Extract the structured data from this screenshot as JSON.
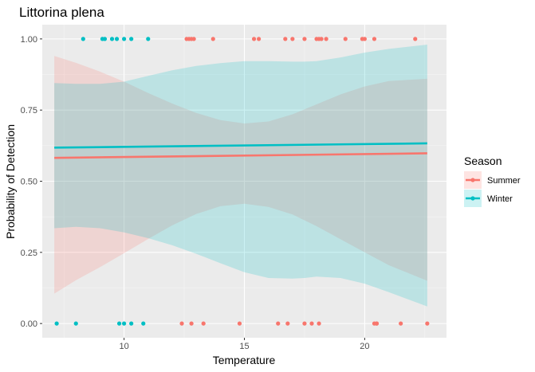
{
  "chart_data": {
    "type": "scatter",
    "title": "Littorina plena",
    "xlabel": "Temperature",
    "ylabel": "Probability of Detection",
    "xlim": [
      6.6,
      23.4
    ],
    "ylim": [
      -0.05,
      1.05
    ],
    "x_ticks": [
      10,
      15,
      20
    ],
    "x_tick_labels": [
      "10",
      "15",
      "20"
    ],
    "y_ticks": [
      0,
      0.25,
      0.5,
      0.75,
      1.0
    ],
    "y_tick_labels": [
      "0.00",
      "0.25",
      "0.50",
      "0.75",
      "1.00"
    ],
    "grid": true,
    "legend": {
      "title": "Season",
      "position": "right"
    },
    "series": [
      {
        "name": "Summer",
        "color": "#F8766D",
        "points_y1": [
          12.6,
          12.7,
          12.8,
          12.9,
          13.7,
          15.4,
          15.6,
          16.7,
          17.0,
          17.5,
          18.0,
          18.1,
          18.2,
          18.4,
          19.2,
          19.9,
          20.0,
          20.4,
          22.1
        ],
        "points_y0": [
          12.4,
          12.8,
          13.3,
          14.8,
          16.4,
          16.8,
          17.5,
          17.8,
          18.1,
          20.4,
          20.5,
          20.5,
          21.5,
          22.6
        ],
        "fit_x": [
          7.1,
          22.6
        ],
        "fit_y": [
          0.582,
          0.598
        ],
        "ci": {
          "x": [
            7.1,
            8.0,
            9.0,
            10.0,
            11.0,
            12.0,
            13.0,
            14.0,
            15.0,
            16.0,
            17.0,
            18.0,
            19.0,
            20.0,
            21.0,
            22.6
          ],
          "lower": [
            0.105,
            0.152,
            0.198,
            0.247,
            0.297,
            0.345,
            0.385,
            0.412,
            0.421,
            0.41,
            0.383,
            0.342,
            0.296,
            0.25,
            0.205,
            0.15
          ],
          "upper": [
            0.94,
            0.916,
            0.885,
            0.85,
            0.81,
            0.773,
            0.74,
            0.715,
            0.703,
            0.71,
            0.735,
            0.77,
            0.805,
            0.833,
            0.852,
            0.86
          ]
        }
      },
      {
        "name": "Winter",
        "color": "#00BFC4",
        "points_y1": [
          8.3,
          9.1,
          9.2,
          9.5,
          9.7,
          10.0,
          10.3,
          11.0
        ],
        "points_y0": [
          7.2,
          8.0,
          9.8,
          10.0,
          10.3,
          10.8
        ],
        "fit_x": [
          7.1,
          22.6
        ],
        "fit_y": [
          0.618,
          0.633
        ],
        "ci": {
          "x": [
            7.1,
            8.0,
            9.0,
            10.0,
            11.0,
            12.0,
            13.0,
            14.0,
            15.0,
            16.0,
            17.0,
            17.5,
            18.0,
            19.0,
            20.0,
            21.0,
            22.6
          ],
          "lower": [
            0.335,
            0.34,
            0.335,
            0.32,
            0.3,
            0.275,
            0.245,
            0.212,
            0.18,
            0.16,
            0.158,
            0.16,
            0.165,
            0.16,
            0.14,
            0.11,
            0.06
          ],
          "upper": [
            0.845,
            0.842,
            0.842,
            0.85,
            0.87,
            0.89,
            0.905,
            0.915,
            0.922,
            0.922,
            0.92,
            0.92,
            0.922,
            0.935,
            0.952,
            0.965,
            0.98
          ]
        }
      }
    ]
  }
}
